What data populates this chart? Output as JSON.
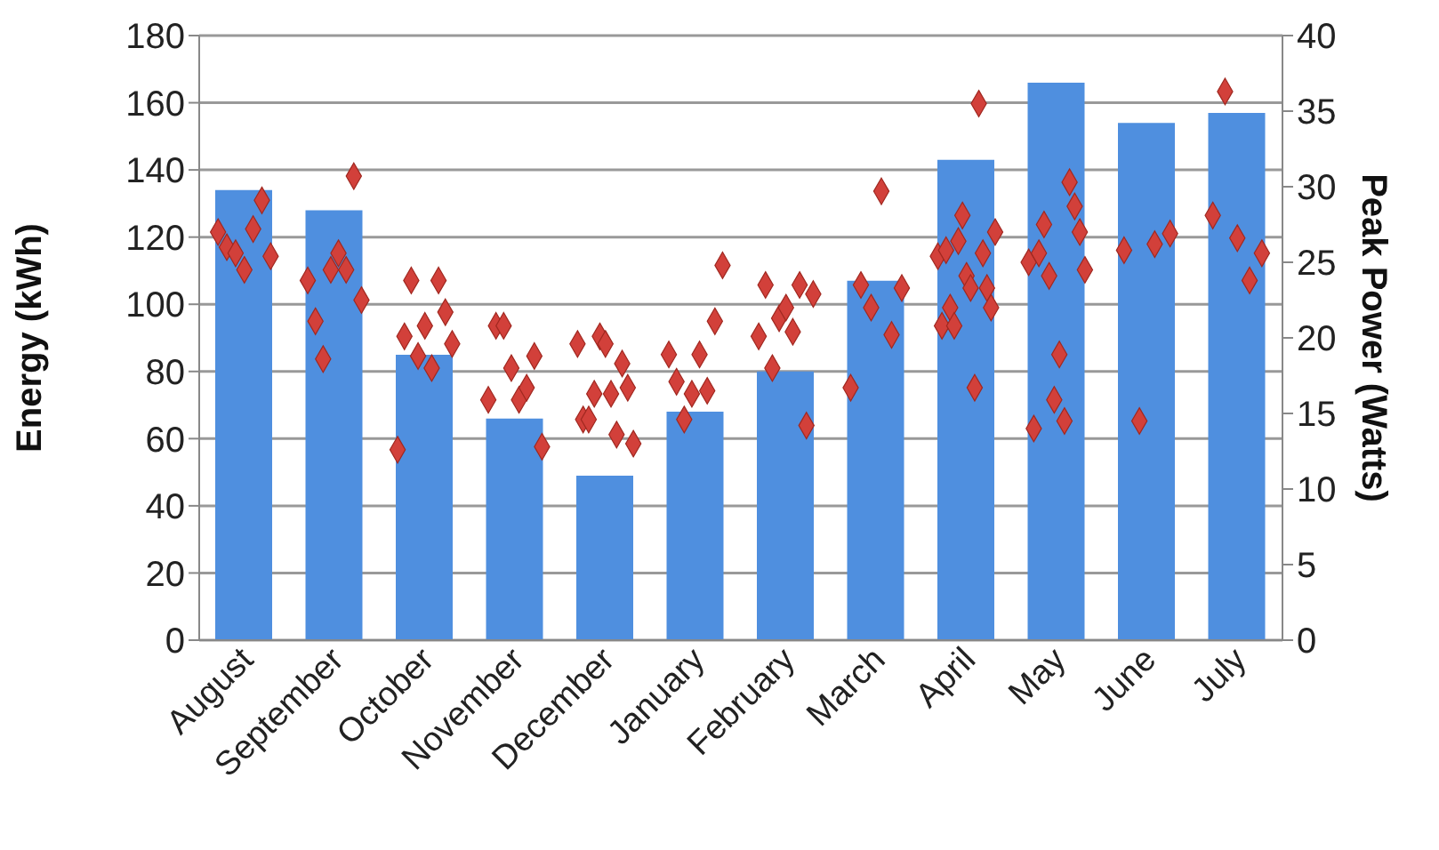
{
  "chart_data": {
    "type": "bar",
    "ylabel": "Energy (kWh)",
    "y2label": "Peak Power (Watts)",
    "categories": [
      "August",
      "September",
      "October",
      "November",
      "December",
      "January",
      "February",
      "March",
      "April",
      "May",
      "June",
      "July"
    ],
    "ylim": [
      0,
      180
    ],
    "yticks": [
      0,
      20,
      40,
      60,
      80,
      100,
      120,
      140,
      160,
      180
    ],
    "y2lim": [
      0,
      40
    ],
    "y2ticks": [
      0,
      5,
      10,
      15,
      20,
      25,
      30,
      35,
      40
    ],
    "grid": "y",
    "legend": false,
    "series": [
      {
        "color": "#4f8fdf",
        "values": [
          134,
          128,
          85,
          66,
          49,
          68,
          80,
          107,
          143,
          166,
          154,
          157
        ]
      },
      {
        "type": "scatter",
        "axis": "y2",
        "color": "#d2403a",
        "marker": "diamond",
        "x": [
          "August",
          "August",
          "August",
          "August",
          "August",
          "August",
          "August",
          "September",
          "September",
          "September",
          "September",
          "September",
          "September",
          "September",
          "September",
          "October",
          "October",
          "October",
          "October",
          "October",
          "October",
          "October",
          "October",
          "October",
          "November",
          "November",
          "November",
          "November",
          "November",
          "November",
          "November",
          "November",
          "December",
          "December",
          "December",
          "December",
          "December",
          "December",
          "December",
          "December",
          "December",
          "December",
          "December",
          "January",
          "January",
          "January",
          "January",
          "January",
          "January",
          "January",
          "January",
          "February",
          "February",
          "February",
          "February",
          "February",
          "February",
          "February",
          "February",
          "February",
          "March",
          "March",
          "March",
          "March",
          "March",
          "March",
          "April",
          "April",
          "April",
          "April",
          "April",
          "April",
          "April",
          "April",
          "April",
          "April",
          "April",
          "April",
          "April",
          "April",
          "April",
          "May",
          "May",
          "May",
          "May",
          "May",
          "May",
          "May",
          "May",
          "May",
          "May",
          "May",
          "May",
          "June",
          "June",
          "June",
          "June",
          "July",
          "July",
          "July",
          "July",
          "July"
        ],
        "values": [
          27.0,
          26.0,
          25.6,
          24.5,
          27.2,
          29.1,
          25.4,
          23.8,
          21.1,
          18.6,
          24.5,
          25.6,
          24.5,
          30.7,
          22.5,
          12.6,
          20.1,
          23.8,
          18.8,
          20.8,
          18.0,
          23.8,
          21.7,
          19.6,
          15.9,
          20.8,
          20.8,
          18.0,
          15.9,
          16.7,
          18.8,
          12.8,
          19.6,
          14.6,
          14.6,
          16.3,
          20.1,
          19.6,
          16.3,
          13.6,
          18.3,
          16.7,
          13.0,
          18.9,
          17.1,
          14.6,
          16.3,
          18.9,
          16.5,
          21.1,
          24.8,
          20.1,
          23.5,
          18.0,
          21.3,
          22.0,
          20.4,
          23.5,
          14.2,
          22.9,
          16.7,
          23.5,
          22.0,
          29.7,
          20.2,
          23.3,
          25.4,
          20.8,
          25.8,
          22.0,
          20.8,
          26.4,
          28.1,
          24.1,
          23.3,
          16.7,
          35.5,
          25.6,
          23.3,
          22.0,
          27.0,
          25.0,
          14.0,
          25.6,
          27.5,
          24.1,
          15.9,
          18.9,
          14.5,
          30.3,
          28.7,
          27.0,
          24.5,
          25.8,
          14.5,
          26.2,
          26.9,
          28.1,
          36.3,
          26.6,
          23.8,
          25.6
        ]
      }
    ]
  }
}
